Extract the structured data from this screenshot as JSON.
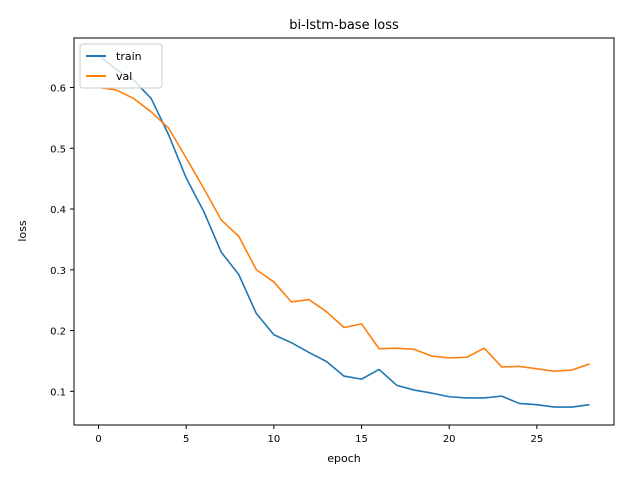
{
  "chart_data": {
    "type": "line",
    "title": "bi-lstm-base loss",
    "xlabel": "epoch",
    "ylabel": "loss",
    "xlim": [
      -1.4,
      29.4
    ],
    "ylim": [
      0.0445,
      0.6815
    ],
    "xticks": [
      0,
      5,
      10,
      15,
      20,
      25
    ],
    "yticks": [
      0.1,
      0.2,
      0.3,
      0.4,
      0.5,
      0.6
    ],
    "grid": false,
    "legend": "top-left",
    "x": [
      0,
      1,
      2,
      3,
      4,
      5,
      6,
      7,
      8,
      9,
      10,
      11,
      12,
      13,
      14,
      15,
      16,
      17,
      18,
      19,
      20,
      21,
      22,
      23,
      24,
      25,
      26,
      27,
      28
    ],
    "series": [
      {
        "name": "train",
        "color": "#1f77b4",
        "values": [
          0.653,
          0.63,
          0.612,
          0.582,
          0.522,
          0.451,
          0.396,
          0.329,
          0.292,
          0.228,
          0.193,
          0.18,
          0.164,
          0.149,
          0.125,
          0.12,
          0.136,
          0.11,
          0.102,
          0.097,
          0.091,
          0.089,
          0.089,
          0.092,
          0.08,
          0.078,
          0.074,
          0.074,
          0.078
        ]
      },
      {
        "name": "val",
        "color": "#ff7f0e",
        "values": [
          0.6,
          0.596,
          0.582,
          0.56,
          0.533,
          0.484,
          0.434,
          0.382,
          0.355,
          0.3,
          0.28,
          0.247,
          0.251,
          0.231,
          0.205,
          0.211,
          0.17,
          0.171,
          0.169,
          0.158,
          0.155,
          0.156,
          0.171,
          0.14,
          0.141,
          0.137,
          0.133,
          0.135,
          0.145
        ]
      }
    ]
  }
}
